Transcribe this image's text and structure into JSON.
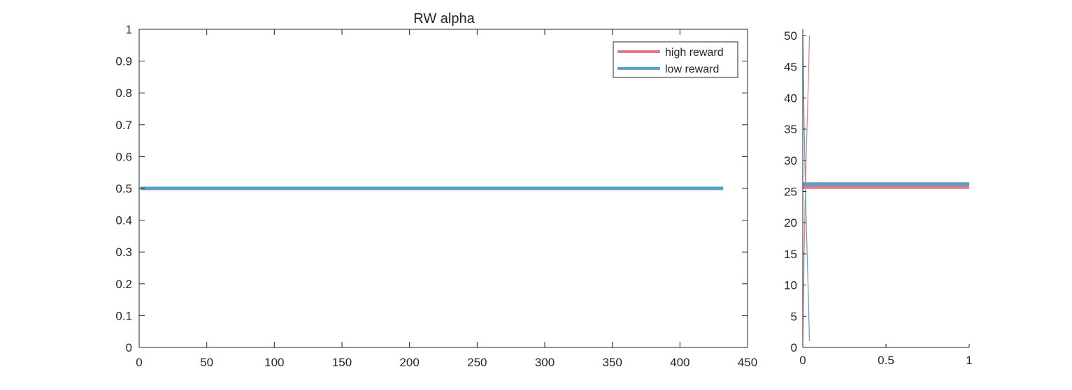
{
  "chart_data": [
    {
      "type": "line",
      "title": "RW  alpha",
      "xlabel": "",
      "ylabel": "",
      "xlim": [
        0,
        450
      ],
      "ylim": [
        0,
        1
      ],
      "xticks": [
        0,
        50,
        100,
        150,
        200,
        250,
        300,
        350,
        400,
        450
      ],
      "yticks": [
        0,
        0.1,
        0.2,
        0.3,
        0.4,
        0.5,
        0.6,
        0.7,
        0.8,
        0.9,
        1
      ],
      "grid": false,
      "legend_position": "top-right",
      "series": [
        {
          "name": "high reward",
          "color": "#e07b8a",
          "x": [
            1,
            432
          ],
          "y": [
            0.5,
            0.5
          ]
        },
        {
          "name": "low reward",
          "color": "#5b9fc4",
          "x": [
            1,
            432
          ],
          "y": [
            0.5,
            0.5
          ]
        }
      ]
    },
    {
      "type": "line",
      "title": "",
      "xlabel": "",
      "ylabel": "",
      "xlim": [
        0,
        1
      ],
      "ylim": [
        0,
        51
      ],
      "xticks": [
        0,
        0.5,
        1
      ],
      "xtick_labels": [
        "0",
        "0.5",
        "1"
      ],
      "yticks": [
        0,
        5,
        10,
        15,
        20,
        25,
        30,
        35,
        40,
        45,
        50
      ],
      "grid": false,
      "series": [
        {
          "color": "#e07b8a",
          "x": [
            0,
            0.004,
            0.008,
            0.013,
            0.019,
            0.026,
            0.034,
            0.04
          ],
          "y": [
            1,
            8,
            15,
            22,
            29,
            36,
            43,
            50
          ],
          "style": "thin"
        },
        {
          "color": "#5b9fc4",
          "x": [
            0.04,
            0.034,
            0.026,
            0.019,
            0.013,
            0.008,
            0.004,
            0
          ],
          "y": [
            1,
            8,
            15,
            22,
            29,
            36,
            43,
            50
          ],
          "style": "thin"
        },
        {
          "color": "#e07b8a",
          "x": [
            0,
            1
          ],
          "y": [
            25.7,
            25.7
          ],
          "style": "thick"
        },
        {
          "color": "#5b9fc4",
          "x": [
            0,
            1
          ],
          "y": [
            26.2,
            26.2
          ],
          "style": "thick"
        }
      ]
    }
  ]
}
